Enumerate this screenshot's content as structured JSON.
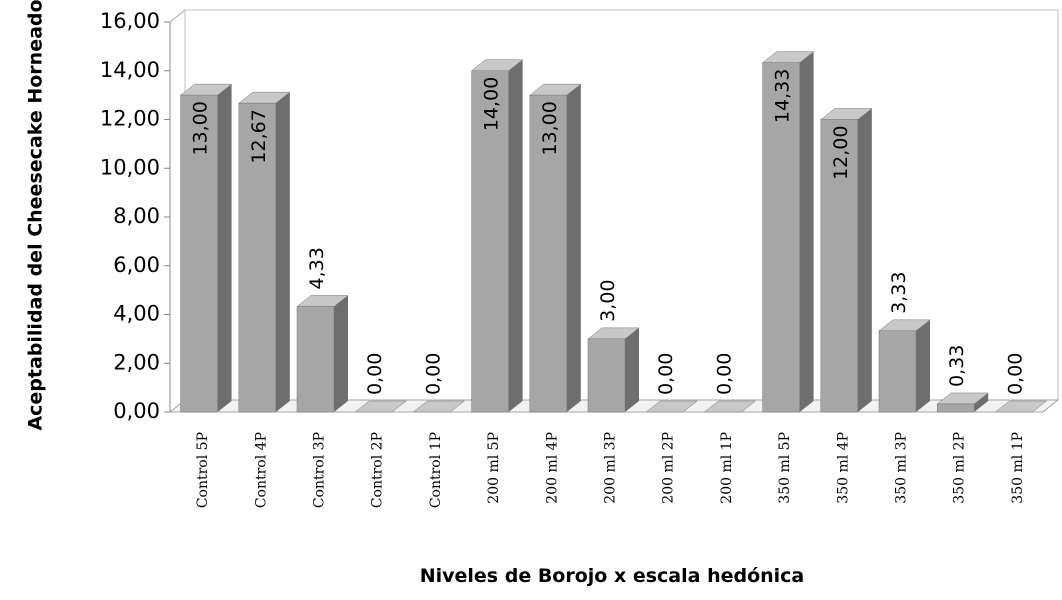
{
  "chart_data": {
    "type": "bar3d",
    "y_axis_label": "Aceptabilidad del Cheesecake Horneado",
    "x_axis_label": "Niveles de Borojo x escala hedónica",
    "categories": [
      "Control 5P",
      "Control 4P",
      "Control 3P",
      "Control 2P",
      "Control 1P",
      "200 ml 5P",
      "200 ml 4P",
      "200 ml 3P",
      "200 ml 2P",
      "200 ml 1P",
      "350 ml 5P",
      "350 ml 4P",
      "350 ml 3P",
      "350 ml 2P",
      "350 ml 1P"
    ],
    "values": [
      13.0,
      12.67,
      4.33,
      0,
      0,
      14.0,
      13.0,
      3.0,
      0,
      0,
      14.33,
      12.0,
      3.33,
      0.33,
      0
    ],
    "value_labels": [
      "13,00",
      "12,67",
      "4,33",
      "0,00",
      "0,00",
      "14,00",
      "13,00",
      "3,00",
      "0,00",
      "0,00",
      "14,33",
      "12,00",
      "3,33",
      "0,33",
      "0,00"
    ],
    "color": "#a6a6a6",
    "ylim": [
      0,
      16
    ],
    "yticks": [
      {
        "value": 0,
        "label": "0,00"
      },
      {
        "value": 2,
        "label": "2,00"
      },
      {
        "value": 4,
        "label": "4,00"
      },
      {
        "value": 6,
        "label": "6,00"
      },
      {
        "value": 8,
        "label": "8,00"
      },
      {
        "value": 10,
        "label": "10,00"
      },
      {
        "value": 12,
        "label": "12,00"
      },
      {
        "value": 14,
        "label": "14,00"
      },
      {
        "value": 16,
        "label": "16,00"
      }
    ]
  }
}
